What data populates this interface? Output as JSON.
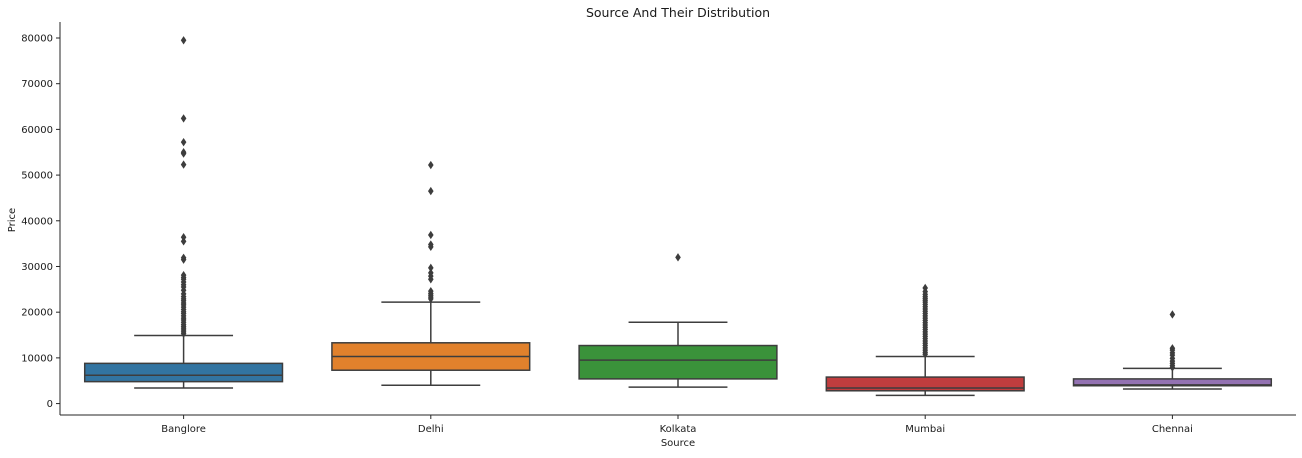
{
  "chart_data": {
    "type": "box",
    "title": "Source And Their Distribution",
    "xlabel": "Source",
    "ylabel": "Price",
    "ylim": [
      -2500,
      83500
    ],
    "yticks": [
      0,
      10000,
      20000,
      30000,
      40000,
      50000,
      60000,
      70000,
      80000
    ],
    "grid": false,
    "categories": [
      "Banglore",
      "Delhi",
      "Kolkata",
      "Mumbai",
      "Chennai"
    ],
    "boxes": [
      {
        "category": "Banglore",
        "color": "#3274a1",
        "whisker_low": 3400,
        "q1": 4800,
        "median": 6200,
        "q3": 8800,
        "whisker_high": 14900,
        "outliers": [
          79500,
          62400,
          57200,
          55000,
          54700,
          52300,
          36400,
          35500,
          31900,
          31500,
          28100,
          27600,
          27200,
          26600,
          26000,
          25500,
          24800,
          24000,
          23400,
          22900,
          22500,
          22000,
          21600,
          21100,
          20600,
          20100,
          19700,
          19200,
          18700,
          18300,
          17800,
          17300,
          16900,
          16500,
          16100,
          15700,
          15300
        ]
      },
      {
        "category": "Delhi",
        "color": "#e1812c",
        "whisker_low": 4000,
        "q1": 7300,
        "median": 10300,
        "q3": 13300,
        "whisker_high": 22200,
        "outliers": [
          52200,
          46500,
          36900,
          34800,
          34300,
          29700,
          28600,
          27900,
          27200,
          24600,
          24100,
          23700,
          23300,
          22900
        ]
      },
      {
        "category": "Kolkata",
        "color": "#3a923a",
        "whisker_low": 3600,
        "q1": 5400,
        "median": 9500,
        "q3": 12700,
        "whisker_high": 17800,
        "outliers": [
          32000
        ]
      },
      {
        "category": "Mumbai",
        "color": "#c03d3e",
        "whisker_low": 1800,
        "q1": 2800,
        "median": 3400,
        "q3": 5800,
        "whisker_high": 10300,
        "outliers": [
          25300,
          24500,
          23900,
          23400,
          23000,
          22600,
          22200,
          21700,
          21200,
          20700,
          20200,
          19700,
          19200,
          18700,
          18200,
          17700,
          17200,
          16700,
          16200,
          15700,
          15200,
          14700,
          14200,
          13700,
          13200,
          12700,
          12200,
          11700,
          11200,
          10800
        ]
      },
      {
        "category": "Chennai",
        "color": "#9372b2",
        "whisker_low": 3200,
        "q1": 3900,
        "median": 4100,
        "q3": 5400,
        "whisker_high": 7700,
        "outliers": [
          19500,
          12100,
          11700,
          11100,
          10600,
          9900,
          9300,
          8800,
          8300,
          7900
        ]
      }
    ]
  }
}
